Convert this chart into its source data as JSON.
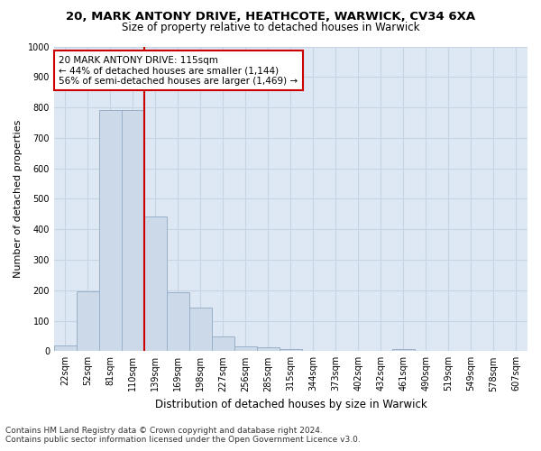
{
  "title1": "20, MARK ANTONY DRIVE, HEATHCOTE, WARWICK, CV34 6XA",
  "title2": "Size of property relative to detached houses in Warwick",
  "xlabel": "Distribution of detached houses by size in Warwick",
  "ylabel": "Number of detached properties",
  "categories": [
    "22sqm",
    "52sqm",
    "81sqm",
    "110sqm",
    "139sqm",
    "169sqm",
    "198sqm",
    "227sqm",
    "256sqm",
    "285sqm",
    "315sqm",
    "344sqm",
    "373sqm",
    "402sqm",
    "432sqm",
    "461sqm",
    "490sqm",
    "519sqm",
    "549sqm",
    "578sqm",
    "607sqm"
  ],
  "values": [
    18,
    195,
    790,
    790,
    443,
    193,
    142,
    48,
    16,
    12,
    8,
    0,
    0,
    0,
    0,
    8,
    0,
    0,
    0,
    0,
    0
  ],
  "bar_color": "#ccd9e8",
  "bar_edgecolor": "#9ab0c8",
  "vline_color": "#cc0000",
  "vline_x": 3.5,
  "annotation_text": "20 MARK ANTONY DRIVE: 115sqm\n← 44% of detached houses are smaller (1,144)\n56% of semi-detached houses are larger (1,469) →",
  "annotation_box_edgecolor": "#cc0000",
  "annotation_box_facecolor": "#ffffff",
  "ylim": [
    0,
    1000
  ],
  "yticks": [
    0,
    100,
    200,
    300,
    400,
    500,
    600,
    700,
    800,
    900,
    1000
  ],
  "grid_color": "#c8d4e4",
  "bg_color": "#dde8f4",
  "footnote": "Contains HM Land Registry data © Crown copyright and database right 2024.\nContains public sector information licensed under the Open Government Licence v3.0.",
  "title1_fontsize": 9.5,
  "title2_fontsize": 8.5,
  "xlabel_fontsize": 8.5,
  "ylabel_fontsize": 8,
  "tick_fontsize": 7,
  "annot_fontsize": 7.5,
  "footnote_fontsize": 6.5
}
